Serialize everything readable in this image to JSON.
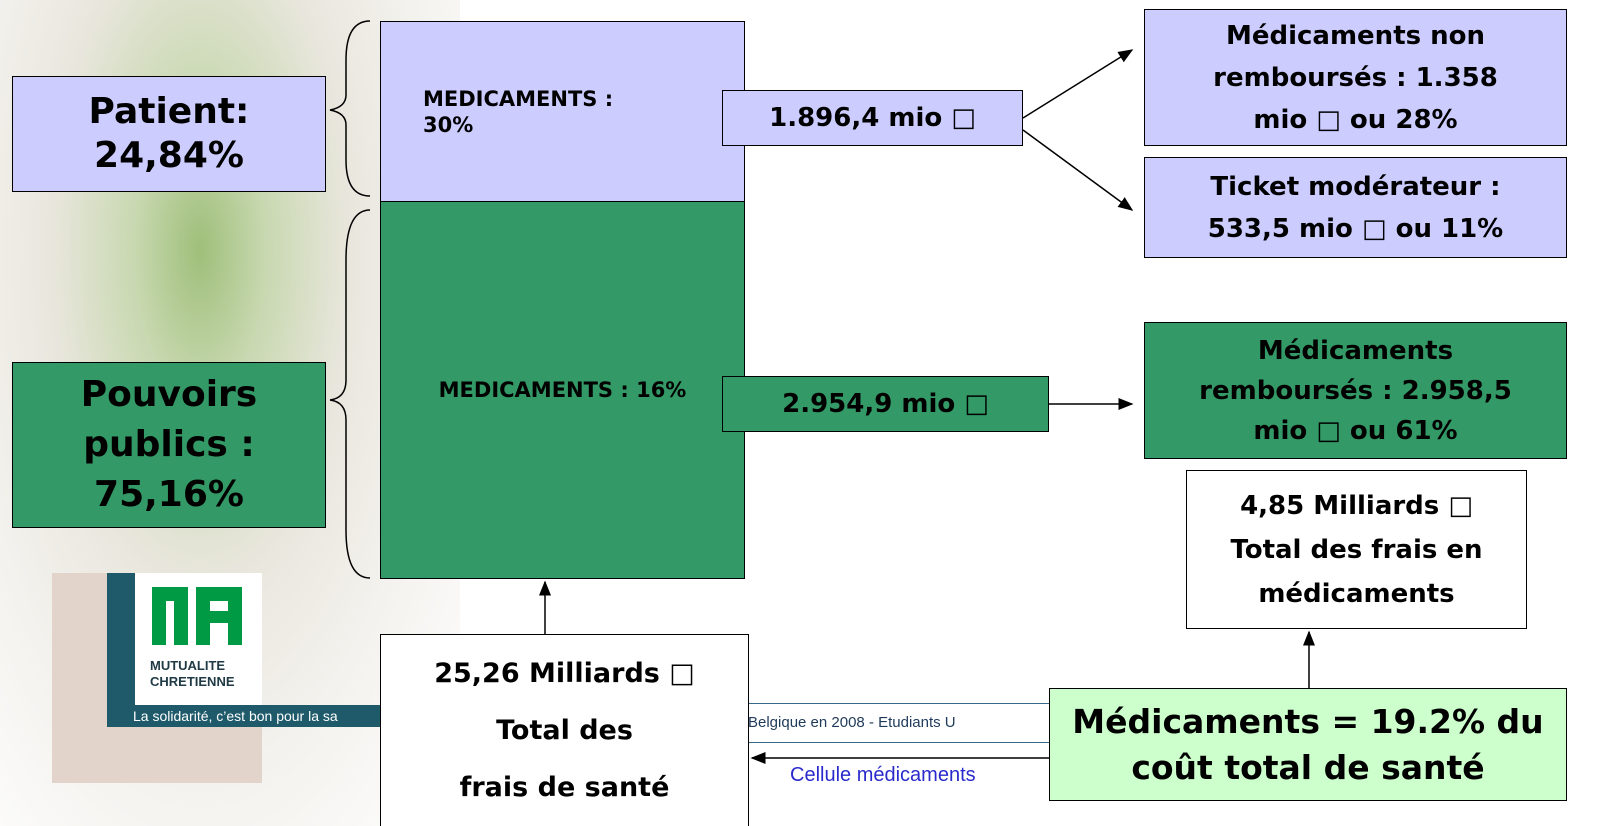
{
  "patient": {
    "lines": [
      "Patient:",
      "24,84%"
    ]
  },
  "public": {
    "lines": [
      "Pouvoirs",
      "publics :",
      "75,16%"
    ]
  },
  "medicaments_patient": {
    "lines": [
      "MEDICAMENTS :",
      "30%"
    ]
  },
  "medicaments_public": {
    "lines": [
      "MEDICAMENTS : 16%"
    ]
  },
  "amount_patient": {
    "lines": [
      "1.896,4 mio □"
    ]
  },
  "amount_public": {
    "lines": [
      "2.954,9 mio □"
    ]
  },
  "non_reimbursed": {
    "lines": [
      "Médicaments non",
      "remboursés : 1.358",
      "mio □ ou 28%"
    ]
  },
  "ticket": {
    "lines": [
      "Ticket modérateur :",
      "533,5 mio □ ou 11%"
    ]
  },
  "reimbursed": {
    "lines": [
      "Médicaments",
      "remboursés : 2.958,5",
      "mio □ ou 61%"
    ]
  },
  "total_medicines": {
    "lines": [
      "4,85 Milliards □",
      "Total des frais en",
      "médicaments"
    ]
  },
  "total_health": {
    "lines": [
      "25,26 Milliards □",
      "Total des",
      "frais de santé"
    ]
  },
  "share": {
    "lines": [
      "Médicaments = 19.2% du",
      "coût total de santé"
    ]
  },
  "logo": {
    "name_lines": [
      "MUTUALITE",
      "CHRETIENNE"
    ],
    "slogan": "La solidarité, c’est bon pour la sa"
  },
  "footer": {
    "text": "Belgique en 2008   -   Etudiants U",
    "cell": "Cellule médicaments"
  }
}
